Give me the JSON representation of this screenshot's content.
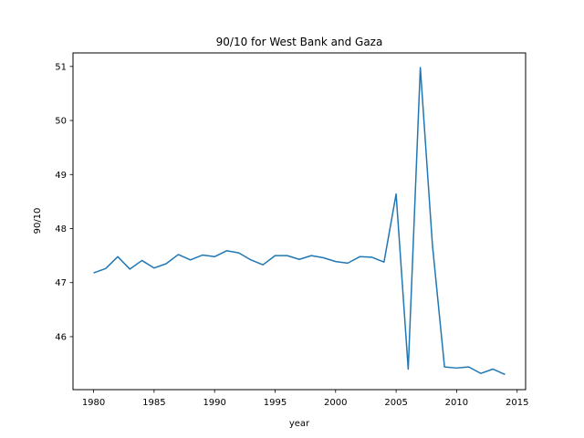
{
  "chart_data": {
    "type": "line",
    "title": "90/10 for West Bank and Gaza",
    "xlabel": "year",
    "ylabel": "90/10",
    "xlim": [
      1978.3,
      2015.7
    ],
    "ylim": [
      45.02,
      51.25
    ],
    "xticks": [
      1980,
      1985,
      1990,
      1995,
      2000,
      2005,
      2010,
      2015
    ],
    "yticks": [
      46,
      47,
      48,
      49,
      50,
      51
    ],
    "grid": false,
    "colors": {
      "line": "#1f77b4"
    },
    "series": [
      {
        "x": [
          1980,
          1981,
          1982,
          1983,
          1984,
          1985,
          1986,
          1987,
          1988,
          1989,
          1990,
          1991,
          1992,
          1993,
          1994,
          1995,
          1996,
          1997,
          1998,
          1999,
          2000,
          2001,
          2002,
          2003,
          2004,
          2005,
          2006,
          2007,
          2008,
          2009,
          2010,
          2011,
          2012,
          2013,
          2014
        ],
        "values": [
          47.18,
          47.26,
          47.48,
          47.25,
          47.41,
          47.27,
          47.35,
          47.52,
          47.42,
          47.51,
          47.48,
          47.59,
          47.55,
          47.42,
          47.33,
          47.5,
          47.5,
          47.43,
          47.5,
          47.46,
          47.39,
          47.36,
          47.48,
          47.47,
          47.38,
          48.64,
          45.4,
          50.98,
          47.7,
          45.44,
          45.42,
          45.44,
          45.32,
          45.4,
          45.3
        ]
      }
    ]
  }
}
